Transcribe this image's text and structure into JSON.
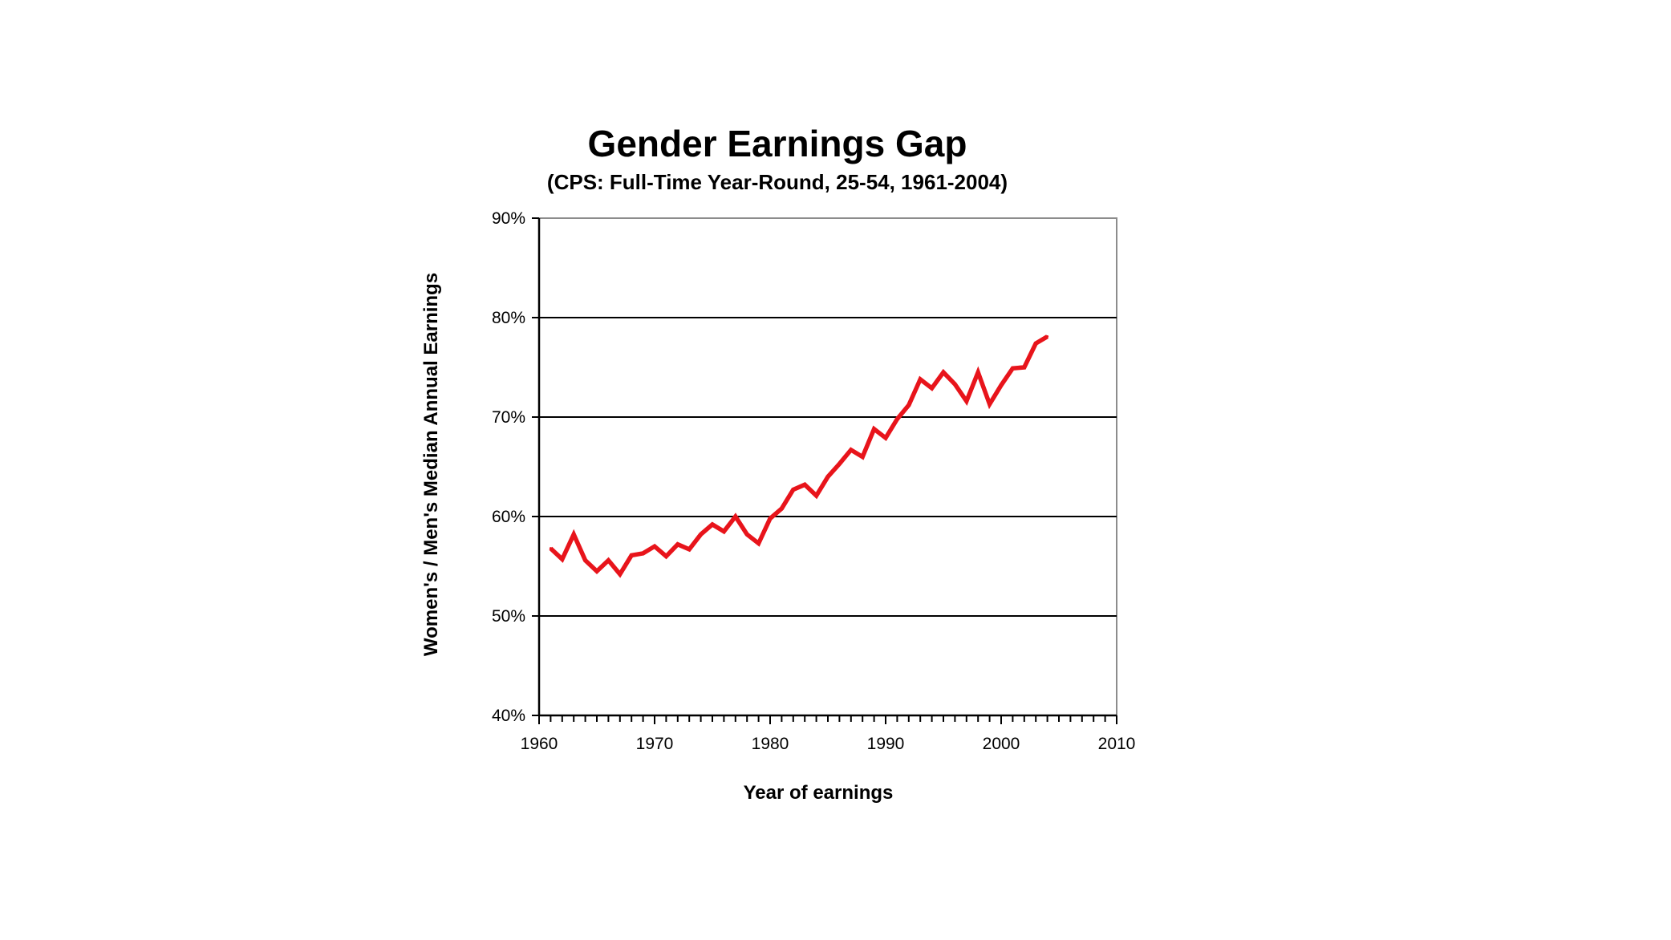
{
  "chart_data": {
    "type": "line",
    "title": "Gender Earnings Gap",
    "subtitle": "(CPS: Full-Time Year-Round, 25-54, 1961-2004)",
    "xlabel": "Year of earnings",
    "ylabel": "Women's / Men's Median Annual Earnings",
    "xlim": [
      1960,
      2010
    ],
    "ylim": [
      40,
      90
    ],
    "x_ticks": [
      1960,
      1970,
      1980,
      1990,
      2000,
      2010
    ],
    "x_tick_labels": [
      "1960",
      "1970",
      "1980",
      "1990",
      "2000",
      "2010"
    ],
    "y_ticks": [
      40,
      50,
      60,
      70,
      80,
      90
    ],
    "y_tick_labels": [
      "40%",
      "50%",
      "60%",
      "70%",
      "80%",
      "90%"
    ],
    "grid": "horizontal major gridlines",
    "legend": "none",
    "series": [
      {
        "color": "#e8141b",
        "x": [
          1961,
          1962,
          1963,
          1964,
          1965,
          1966,
          1967,
          1968,
          1969,
          1970,
          1971,
          1972,
          1973,
          1974,
          1975,
          1976,
          1977,
          1978,
          1979,
          1980,
          1981,
          1982,
          1983,
          1984,
          1985,
          1986,
          1987,
          1988,
          1989,
          1990,
          1991,
          1992,
          1993,
          1994,
          1995,
          1996,
          1997,
          1998,
          1999,
          2000,
          2001,
          2002,
          2003,
          2004
        ],
        "values": [
          56.8,
          55.7,
          58.2,
          55.6,
          54.5,
          55.6,
          54.2,
          56.1,
          56.3,
          57.0,
          56.0,
          57.2,
          56.7,
          58.2,
          59.2,
          58.5,
          60.0,
          58.2,
          57.3,
          59.8,
          60.8,
          62.7,
          63.2,
          62.1,
          64.0,
          65.3,
          66.7,
          66.0,
          68.8,
          67.9,
          69.8,
          71.2,
          73.8,
          72.9,
          74.5,
          73.3,
          71.6,
          74.5,
          71.3,
          73.2,
          74.9,
          75.0,
          77.4,
          78.1
        ]
      }
    ]
  }
}
